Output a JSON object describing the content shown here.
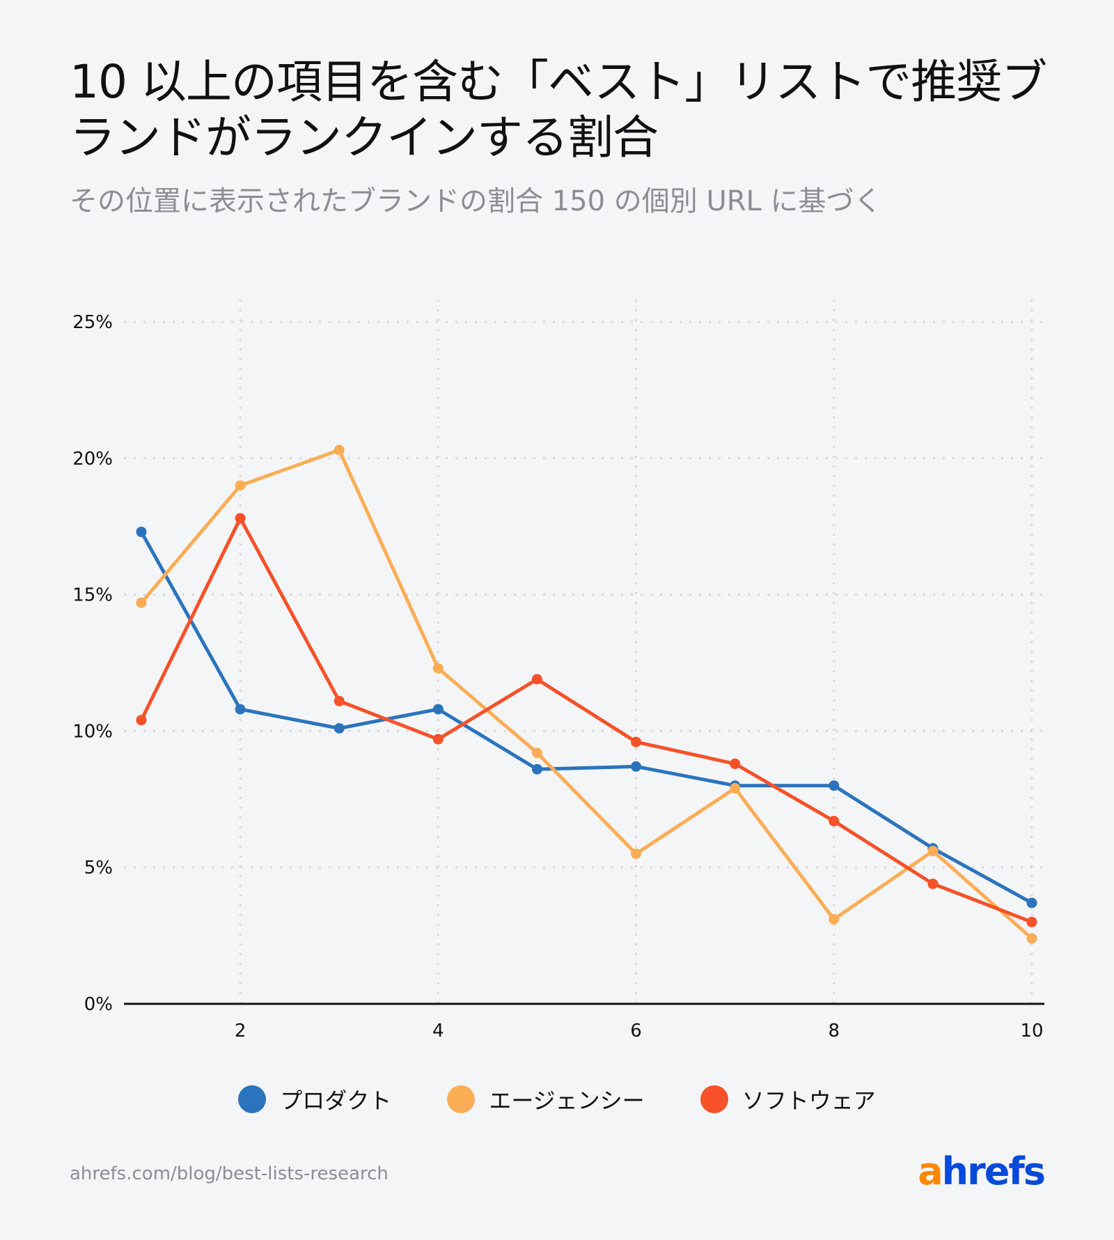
{
  "title": "10 以上の項目を含む「ベスト」リストで推奨ブランドがランクインする割合",
  "subtitle": "その位置に表示されたブランドの割合 150 の個別 URL に基づく",
  "footer": "ahrefs.com/blog/best-lists-research",
  "logo": {
    "a": "a",
    "rest": "hrefs"
  },
  "chart_data": {
    "type": "line",
    "x": [
      1,
      2,
      3,
      4,
      5,
      6,
      7,
      8,
      9,
      10
    ],
    "xticks": [
      "2",
      "4",
      "6",
      "8",
      "10"
    ],
    "xtick_values": [
      2,
      4,
      6,
      8,
      10
    ],
    "yticks": [
      "0%",
      "5%",
      "10%",
      "15%",
      "20%",
      "25%"
    ],
    "ytick_values": [
      0,
      5,
      10,
      15,
      20,
      25
    ],
    "ylim": [
      0,
      25
    ],
    "xlim": [
      0.8,
      10.1
    ],
    "grid": "dotted",
    "legend_position": "bottom",
    "series": [
      {
        "name": "プロダクト",
        "color": "#2b74bd",
        "values": [
          17.3,
          10.8,
          10.1,
          10.8,
          8.6,
          8.7,
          8.0,
          8.0,
          5.7,
          3.7
        ]
      },
      {
        "name": "エージェンシー",
        "color": "#fbad55",
        "values": [
          14.7,
          19.0,
          20.3,
          12.3,
          9.2,
          5.5,
          7.9,
          3.1,
          5.6,
          2.4
        ]
      },
      {
        "name": "ソフトウェア",
        "color": "#f65128",
        "values": [
          10.4,
          17.8,
          11.1,
          9.7,
          11.9,
          9.6,
          8.8,
          6.7,
          4.4,
          3.0
        ]
      }
    ]
  }
}
